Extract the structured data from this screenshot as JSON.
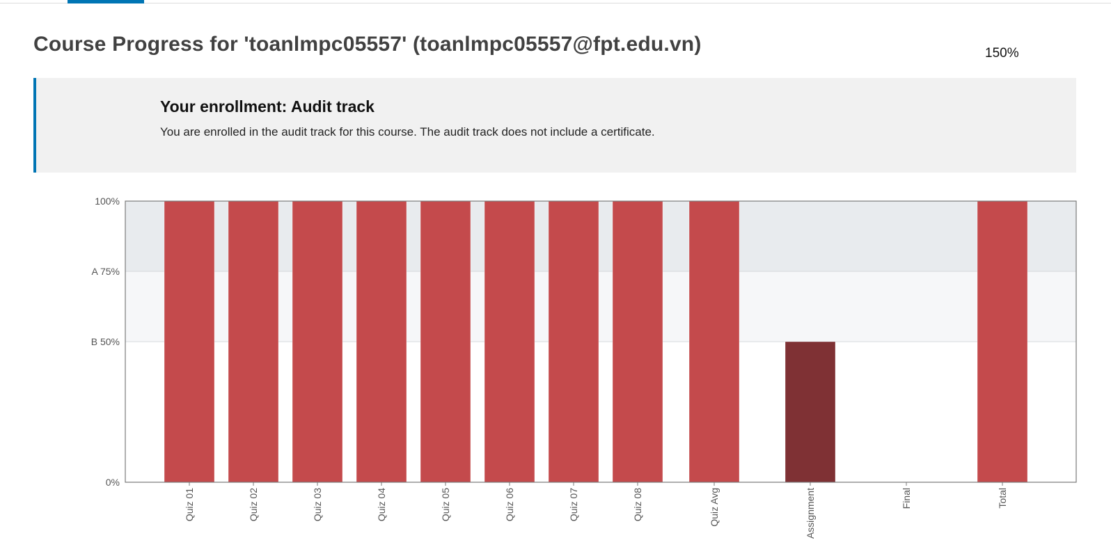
{
  "page": {
    "title": "Course Progress for 'toanlmpc05557' (toanlmpc05557@fpt.edu.vn)",
    "zoom": "150%"
  },
  "enrollment": {
    "title": "Your enrollment: Audit track",
    "message": "You are enrolled in the audit track for this course. The audit track does not include a certificate."
  },
  "colors": {
    "accent": "#0075b4",
    "bar": "#c44a4c",
    "bar_highlight": "#7f3134",
    "band_a": "#e8ebee",
    "band_b": "#f6f7f9"
  },
  "chart_data": {
    "type": "bar",
    "categories": [
      "Quiz 01",
      "Quiz 02",
      "Quiz 03",
      "Quiz 04",
      "Quiz 05",
      "Quiz 06",
      "Quiz 07",
      "Quiz 08",
      "Quiz Avg",
      "Assignment",
      "Final",
      "Total"
    ],
    "values": [
      100,
      100,
      100,
      100,
      100,
      100,
      100,
      100,
      100,
      50,
      0,
      100
    ],
    "ylim": [
      0,
      100
    ],
    "y_ticks": [
      {
        "value": 0,
        "label": "0%"
      },
      {
        "value": 50,
        "label": "B 50%"
      },
      {
        "value": 75,
        "label": "A 75%"
      },
      {
        "value": 100,
        "label": "100%"
      }
    ],
    "grade_bands": [
      {
        "grade": "A",
        "from": 75,
        "to": 100
      },
      {
        "grade": "B",
        "from": 50,
        "to": 75
      }
    ],
    "highlighted_category": "Assignment"
  }
}
